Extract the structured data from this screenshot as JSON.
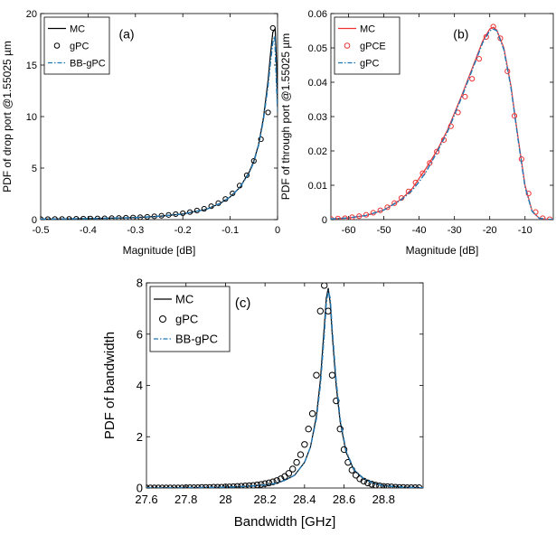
{
  "colors": {
    "mc_ab": "#ee3333",
    "mc": "#000000",
    "gpc": "#000000",
    "gpce": "#ee3333",
    "bbgpc": "#1f77b4",
    "gpc_b": "#1f77b4"
  },
  "chart_data": [
    {
      "id": "a",
      "type": "line",
      "panel_label": "(a)",
      "xlabel": "Magnitude [dB]",
      "ylabel": "PDF of drop port @1.55025 µm",
      "xlim": [
        -0.5,
        0
      ],
      "ylim": [
        0,
        20
      ],
      "xticks": [
        -0.5,
        -0.4,
        -0.3,
        -0.2,
        -0.1,
        0
      ],
      "xticklabels": [
        "-0.5",
        "-0.4",
        "-0.3",
        "-0.2",
        "-0.1",
        "0"
      ],
      "yticks": [
        0,
        5,
        10,
        15,
        20
      ],
      "yticklabels": [
        "0",
        "5",
        "10",
        "15",
        "20"
      ],
      "legend_position": "top-left",
      "series": [
        {
          "name": "MC",
          "style": "solid",
          "color": "#000000",
          "x": [
            -0.5,
            -0.45,
            -0.4,
            -0.35,
            -0.3,
            -0.25,
            -0.2,
            -0.15,
            -0.12,
            -0.1,
            -0.08,
            -0.06,
            -0.05,
            -0.04,
            -0.03,
            -0.02,
            -0.015,
            -0.01,
            -0.005,
            -0.002,
            0
          ],
          "y": [
            0.05,
            0.07,
            0.1,
            0.14,
            0.2,
            0.32,
            0.55,
            1.0,
            1.6,
            2.2,
            3.1,
            4.6,
            5.7,
            7.3,
            9.8,
            13.5,
            16.0,
            18.2,
            18.5,
            15.0,
            11.0
          ]
        },
        {
          "name": "gPC",
          "style": "circle",
          "color": "#000000",
          "x": [
            -0.5,
            -0.485,
            -0.47,
            -0.455,
            -0.44,
            -0.425,
            -0.41,
            -0.395,
            -0.38,
            -0.365,
            -0.35,
            -0.335,
            -0.32,
            -0.305,
            -0.29,
            -0.275,
            -0.26,
            -0.245,
            -0.23,
            -0.215,
            -0.2,
            -0.185,
            -0.17,
            -0.155,
            -0.14,
            -0.125,
            -0.11,
            -0.095,
            -0.08,
            -0.065,
            -0.05,
            -0.035,
            -0.02,
            -0.01
          ],
          "y": [
            0.05,
            0.05,
            0.06,
            0.06,
            0.07,
            0.08,
            0.09,
            0.1,
            0.11,
            0.12,
            0.14,
            0.16,
            0.18,
            0.2,
            0.23,
            0.27,
            0.32,
            0.38,
            0.45,
            0.53,
            0.62,
            0.73,
            0.88,
            1.05,
            1.3,
            1.6,
            2.0,
            2.55,
            3.3,
            4.3,
            5.7,
            7.8,
            10.4,
            18.6
          ]
        },
        {
          "name": "BB-gPC",
          "style": "dashdot",
          "color": "#1f77b4",
          "x": [
            -0.5,
            -0.45,
            -0.4,
            -0.35,
            -0.3,
            -0.25,
            -0.2,
            -0.15,
            -0.12,
            -0.1,
            -0.08,
            -0.06,
            -0.05,
            -0.04,
            -0.03,
            -0.02,
            -0.015,
            -0.01,
            -0.006,
            -0.003,
            0
          ],
          "y": [
            0.05,
            0.07,
            0.1,
            0.14,
            0.2,
            0.32,
            0.55,
            1.0,
            1.6,
            2.2,
            3.1,
            4.5,
            5.6,
            7.2,
            9.6,
            13.0,
            15.2,
            17.2,
            17.8,
            14.0,
            10.5
          ]
        }
      ]
    },
    {
      "id": "b",
      "type": "line",
      "panel_label": "(b)",
      "xlabel": "Magnitude [dB]",
      "ylabel": "PDF of through port @1.55025 µm",
      "xlim": [
        -65,
        -2
      ],
      "ylim": [
        0,
        0.06
      ],
      "xticks": [
        -60,
        -50,
        -40,
        -30,
        -20,
        -10
      ],
      "xticklabels": [
        "-60",
        "-50",
        "-40",
        "-30",
        "-20",
        "-10"
      ],
      "yticks": [
        0,
        0.01,
        0.02,
        0.03,
        0.04,
        0.05,
        0.06
      ],
      "yticklabels": [
        "0",
        "0.01",
        "0.02",
        "0.03",
        "0.04",
        "0.05",
        "0.06"
      ],
      "legend_position": "top-left",
      "series": [
        {
          "name": "MC",
          "style": "solid",
          "color": "#ee3333",
          "x": [
            -65,
            -60,
            -55,
            -50,
            -45,
            -42,
            -40,
            -38,
            -35,
            -32,
            -30,
            -28,
            -25,
            -22,
            -20,
            -19,
            -18,
            -16,
            -14,
            -12,
            -10,
            -8,
            -6,
            -4,
            -2
          ],
          "y": [
            0.0002,
            0.0005,
            0.0012,
            0.0028,
            0.006,
            0.009,
            0.012,
            0.015,
            0.02,
            0.026,
            0.031,
            0.036,
            0.044,
            0.052,
            0.0555,
            0.056,
            0.0552,
            0.05,
            0.039,
            0.024,
            0.01,
            0.0025,
            0.0004,
            0.0001,
            0
          ]
        },
        {
          "name": "gPCE",
          "style": "circle",
          "color": "#ee3333",
          "x": [
            -65,
            -63,
            -61,
            -59,
            -57,
            -55,
            -53,
            -51,
            -49,
            -47,
            -45,
            -43,
            -41,
            -39,
            -37,
            -35,
            -33,
            -31,
            -29,
            -27,
            -25,
            -23,
            -21,
            -19,
            -17,
            -15,
            -13,
            -11,
            -9,
            -7,
            -5,
            -3
          ],
          "y": [
            0.0002,
            0.0003,
            0.0004,
            0.0007,
            0.001,
            0.0014,
            0.002,
            0.0027,
            0.0036,
            0.0048,
            0.0063,
            0.0082,
            0.0108,
            0.0135,
            0.0165,
            0.0198,
            0.0232,
            0.0272,
            0.0312,
            0.0358,
            0.041,
            0.0468,
            0.0532,
            0.0562,
            0.0528,
            0.0432,
            0.0302,
            0.0176,
            0.0076,
            0.0022,
            0.0004,
            0.0001
          ]
        },
        {
          "name": "gPC",
          "style": "dashdot",
          "color": "#1f77b4",
          "x": [
            -65,
            -60,
            -55,
            -50,
            -45,
            -42,
            -40,
            -38,
            -35,
            -32,
            -30,
            -28,
            -25,
            -22,
            -20,
            -19,
            -18,
            -16,
            -14,
            -12,
            -10,
            -8,
            -6,
            -4,
            -2
          ],
          "y": [
            0.0002,
            0.0005,
            0.0012,
            0.0028,
            0.0058,
            0.0085,
            0.011,
            0.014,
            0.0195,
            0.0255,
            0.0305,
            0.0355,
            0.0435,
            0.0515,
            0.055,
            0.0555,
            0.055,
            0.0495,
            0.0385,
            0.0235,
            0.0095,
            0.0024,
            0.0004,
            0.0001,
            0
          ]
        }
      ]
    },
    {
      "id": "c",
      "type": "line",
      "panel_label": "(c)",
      "xlabel": "Bandwidth [GHz]",
      "ylabel": "PDF of bandwidth",
      "xlim": [
        27.6,
        29.0
      ],
      "ylim": [
        0,
        8
      ],
      "xticks": [
        27.6,
        27.8,
        28.0,
        28.2,
        28.4,
        28.6,
        28.8
      ],
      "xticklabels": [
        "27.6",
        "27.8",
        "28",
        "28.2",
        "28.4",
        "28.6",
        "28.8"
      ],
      "yticks": [
        0,
        2,
        4,
        6,
        8
      ],
      "yticklabels": [
        "0",
        "2",
        "4",
        "6",
        "8"
      ],
      "legend_position": "top-left",
      "series": [
        {
          "name": "MC",
          "style": "solid",
          "color": "#000000",
          "x": [
            27.6,
            27.8,
            28.0,
            28.1,
            28.2,
            28.25,
            28.3,
            28.35,
            28.4,
            28.43,
            28.46,
            28.48,
            28.5,
            28.51,
            28.52,
            28.53,
            28.54,
            28.56,
            28.58,
            28.61,
            28.65,
            28.7,
            28.75,
            28.8,
            28.9,
            29.0
          ],
          "y": [
            0,
            0.01,
            0.03,
            0.06,
            0.12,
            0.18,
            0.3,
            0.5,
            1.0,
            1.6,
            2.8,
            4.2,
            6.3,
            7.4,
            7.8,
            7.2,
            6.0,
            4.0,
            2.6,
            1.4,
            0.7,
            0.35,
            0.18,
            0.09,
            0.03,
            0.01
          ]
        },
        {
          "name": "gPC",
          "style": "circle",
          "color": "#000000",
          "x": [
            27.6,
            27.62,
            27.64,
            27.66,
            27.68,
            27.7,
            27.72,
            27.74,
            27.76,
            27.78,
            27.8,
            27.82,
            27.84,
            27.86,
            27.88,
            27.9,
            27.92,
            27.94,
            27.96,
            27.98,
            28.0,
            28.02,
            28.04,
            28.06,
            28.08,
            28.1,
            28.12,
            28.14,
            28.16,
            28.18,
            28.2,
            28.22,
            28.24,
            28.26,
            28.28,
            28.3,
            28.32,
            28.34,
            28.36,
            28.38,
            28.4,
            28.42,
            28.44,
            28.46,
            28.48,
            28.5,
            28.52,
            28.54,
            28.56,
            28.58,
            28.6,
            28.62,
            28.64,
            28.66,
            28.68,
            28.7,
            28.72,
            28.74,
            28.76,
            28.78,
            28.8,
            28.82,
            28.84,
            28.86,
            28.88,
            28.9,
            28.92,
            28.94,
            28.96,
            28.98
          ],
          "y": [
            0,
            0,
            0,
            0,
            0,
            0,
            0,
            0,
            0,
            0,
            0.01,
            0.01,
            0.01,
            0.01,
            0.02,
            0.02,
            0.02,
            0.03,
            0.03,
            0.03,
            0.04,
            0.04,
            0.05,
            0.06,
            0.07,
            0.08,
            0.09,
            0.1,
            0.12,
            0.14,
            0.17,
            0.2,
            0.24,
            0.29,
            0.36,
            0.45,
            0.57,
            0.74,
            1.0,
            1.3,
            1.7,
            2.3,
            2.9,
            4.4,
            6.9,
            7.9,
            6.9,
            4.4,
            3.4,
            2.3,
            1.5,
            1.0,
            0.7,
            0.5,
            0.36,
            0.27,
            0.2,
            0.15,
            0.11,
            0.08,
            0.06,
            0.05,
            0.04,
            0.03,
            0.02,
            0.02,
            0.01,
            0.01,
            0.01,
            0.01
          ]
        },
        {
          "name": "BB-gPC",
          "style": "dashdot",
          "color": "#1f77b4",
          "x": [
            27.6,
            27.8,
            28.0,
            28.1,
            28.2,
            28.25,
            28.3,
            28.35,
            28.4,
            28.43,
            28.46,
            28.48,
            28.5,
            28.51,
            28.52,
            28.53,
            28.54,
            28.56,
            28.58,
            28.61,
            28.65,
            28.7,
            28.75,
            28.8,
            28.9,
            29.0
          ],
          "y": [
            0,
            0.01,
            0.03,
            0.06,
            0.12,
            0.18,
            0.3,
            0.5,
            1.0,
            1.6,
            2.7,
            4.0,
            6.0,
            7.2,
            7.7,
            7.4,
            6.2,
            4.2,
            2.7,
            1.45,
            0.72,
            0.36,
            0.18,
            0.09,
            0.03,
            0.01
          ]
        }
      ]
    }
  ]
}
